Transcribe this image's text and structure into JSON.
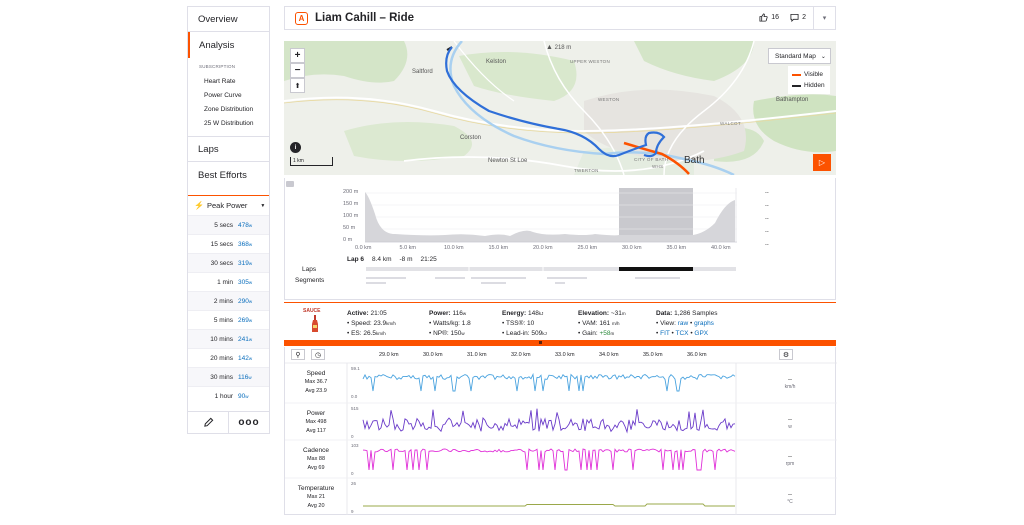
{
  "sidebar": {
    "overview": "Overview",
    "analysis": "Analysis",
    "subscription_label": "SUBSCRIPTION",
    "sub_items": [
      "Heart Rate",
      "Power Curve",
      "Zone Distribution",
      "25 W Distribution"
    ],
    "laps": "Laps",
    "best_efforts": "Best Efforts",
    "peak_power_label": "Peak Power",
    "peak_power_unit": "w",
    "peak_power": [
      {
        "duration": "5 secs",
        "value": "478"
      },
      {
        "duration": "15 secs",
        "value": "368"
      },
      {
        "duration": "30 secs",
        "value": "319"
      },
      {
        "duration": "1 min",
        "value": "305"
      },
      {
        "duration": "2 mins",
        "value": "290"
      },
      {
        "duration": "5 mins",
        "value": "269"
      },
      {
        "duration": "10 mins",
        "value": "241"
      },
      {
        "duration": "20 mins",
        "value": "142"
      },
      {
        "duration": "30 mins",
        "value": "116"
      },
      {
        "duration": "1 hour",
        "value": "90"
      }
    ]
  },
  "header": {
    "title": "Liam Cahill – Ride",
    "kudos_count": "16",
    "comment_count": "2"
  },
  "map": {
    "map_type": "Standard Map",
    "legend_visible": "Visible",
    "legend_hidden": "Hidden",
    "scale": "1 km",
    "elevation_marker": "218 m",
    "labels": {
      "saltford": "Saltford",
      "kelston": "Kelston",
      "upper_weston": "UPPER WESTON",
      "weston": "WESTON",
      "corston": "Corston",
      "newton": "Newton St Loe",
      "city_of_bath": "CITY OF BATH",
      "whs": "WHS",
      "bath": "Bath",
      "twerton": "TWERTON",
      "bathampton": "Bathampton",
      "walcot": "WALCOT"
    },
    "colors": {
      "visible": "#fc5200",
      "hidden": "#242428",
      "route": "#2f6fd8"
    }
  },
  "elevation": {
    "y_ticks": [
      "200 m",
      "150 m",
      "100 m",
      "50 m",
      "0 m"
    ],
    "x_ticks": [
      "0.0 km",
      "5.0 km",
      "10.0 km",
      "15.0 km",
      "20.0 km",
      "25.0 km",
      "30.0 km",
      "35.0 km",
      "40.0 km"
    ],
    "lap_name": "Lap 6",
    "lap_distance": "8.4 km",
    "lap_elev": "-8 m",
    "lap_time": "21:25",
    "laps_label": "Laps",
    "segments_label": "Segments",
    "right_dashes": [
      "--",
      "--",
      "--",
      "--",
      "--"
    ]
  },
  "stats": {
    "sauce": "SAUCE",
    "active_label": "Active:",
    "active": "21:05",
    "speed_label": "Speed:",
    "speed": "23.9",
    "speed_unit": "km/h",
    "es_label": "ES:",
    "es": "26.5",
    "power_label": "Power:",
    "power": "116",
    "power_unit": "w",
    "wkg_label": "Watts/kg:",
    "wkg": "1.8",
    "np_label": "NP®:",
    "np": "150",
    "energy_label": "Energy:",
    "energy": "148",
    "energy_unit": "kJ",
    "tss_label": "TSS®:",
    "tss": "10",
    "leadin_label": "Lead-in:",
    "leadin": "509",
    "elevation_label": "Elevation:",
    "elevation": "~31",
    "elev_unit": "m",
    "vam_label": "VAM:",
    "vam": "161",
    "vam_unit": "m/h",
    "gain_label": "Gain:",
    "gain": "+58",
    "data_label": "Data:",
    "data": "1,286 Samples",
    "view_label": "View:",
    "view_raw": "raw",
    "view_graphs": "graphs",
    "fit": "FIT",
    "tcx": "TCX",
    "gpx": "GPX"
  },
  "streams": {
    "x_ticks": [
      "29.0 km",
      "30.0 km",
      "31.0 km",
      "32.0 km",
      "33.0 km",
      "34.0 km",
      "35.0 km",
      "36.0 km"
    ],
    "items": [
      {
        "name": "Speed",
        "max": "Max 36.7",
        "avg": "Avg 23.9",
        "top": "59.1",
        "bottom": "0.0",
        "unit": "km/h",
        "color": "#4aa3df"
      },
      {
        "name": "Power",
        "max": "Max 498",
        "avg": "Avg 117",
        "top": "515",
        "bottom": "0",
        "unit": "w",
        "color": "#6a3bc9"
      },
      {
        "name": "Cadence",
        "max": "Max 88",
        "avg": "Avg 69",
        "top": "103",
        "bottom": "0",
        "unit": "rpm",
        "color": "#e02fd8"
      },
      {
        "name": "Temperature",
        "max": "Max 21",
        "avg": "Avg 20",
        "top": "26",
        "bottom": "9",
        "unit": "°C",
        "color": "#9aa84a"
      }
    ],
    "dash": "--"
  }
}
